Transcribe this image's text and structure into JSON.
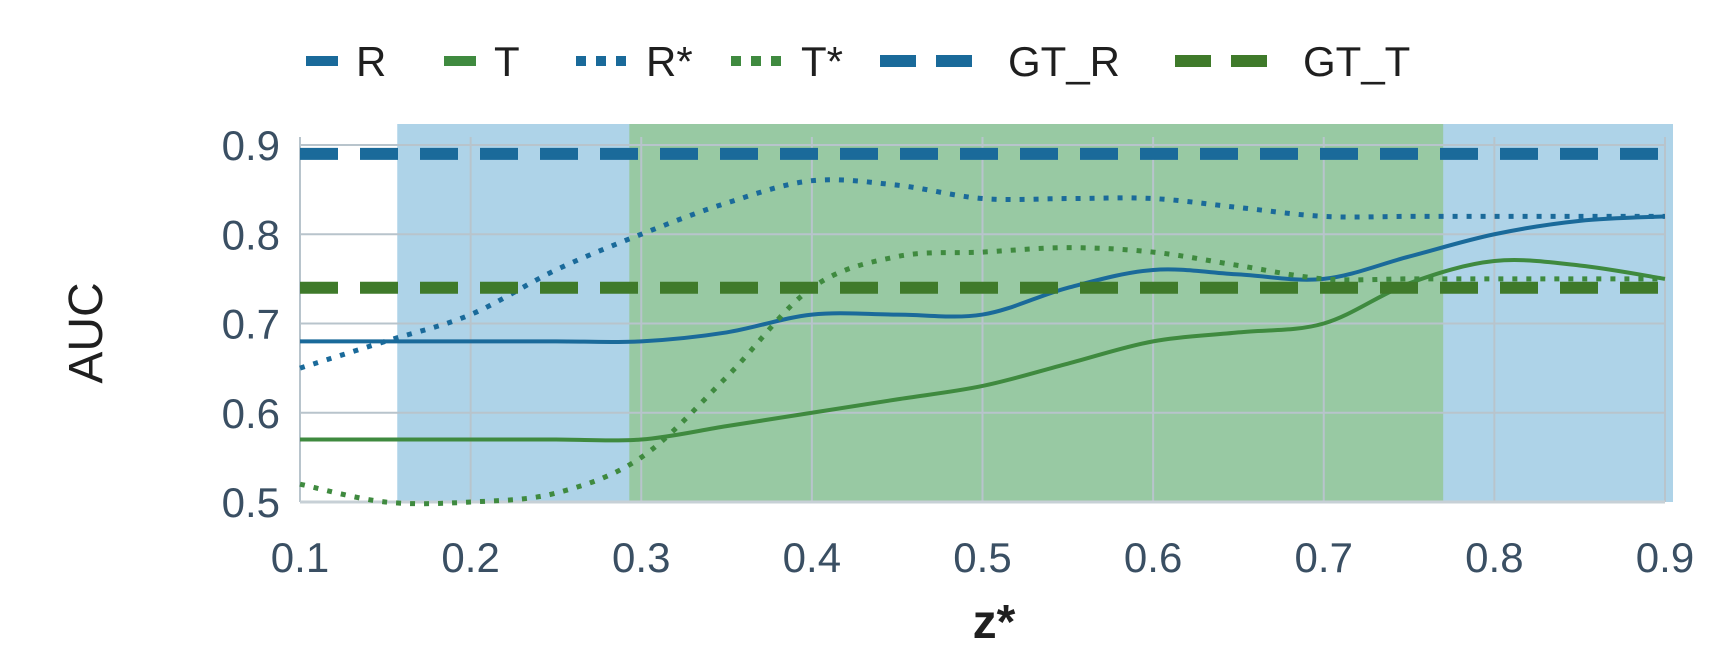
{
  "chart_data": {
    "type": "line",
    "xlabel": "z*",
    "ylabel": "AUC",
    "xlim": [
      0.1,
      0.9
    ],
    "ylim": [
      0.5,
      0.9
    ],
    "xticks": [
      "0.1",
      "0.2",
      "0.3",
      "0.4",
      "0.5",
      "0.6",
      "0.7",
      "0.8",
      "0.9"
    ],
    "yticks": [
      "0.5",
      "0.6",
      "0.7",
      "0.8",
      "0.9"
    ],
    "grid": true,
    "legend_position": "top",
    "shaded_regions": [
      {
        "name": "R-region",
        "x_start": 0.157,
        "x_end": 0.9,
        "color": "#aed3e8"
      },
      {
        "name": "T-region",
        "x_start": 0.293,
        "x_end": 0.77,
        "color": "#98c9a3"
      }
    ],
    "series": [
      {
        "name": "R",
        "style": "solid",
        "color": "#1a6a9a",
        "x": [
          0.1,
          0.15,
          0.2,
          0.25,
          0.3,
          0.35,
          0.4,
          0.45,
          0.5,
          0.55,
          0.6,
          0.65,
          0.7,
          0.75,
          0.8,
          0.85,
          0.9
        ],
        "y": [
          0.68,
          0.68,
          0.68,
          0.68,
          0.68,
          0.69,
          0.71,
          0.71,
          0.71,
          0.74,
          0.76,
          0.755,
          0.75,
          0.775,
          0.8,
          0.815,
          0.82
        ]
      },
      {
        "name": "T",
        "style": "solid",
        "color": "#3f8a3f",
        "x": [
          0.1,
          0.15,
          0.2,
          0.25,
          0.3,
          0.35,
          0.4,
          0.45,
          0.5,
          0.55,
          0.6,
          0.65,
          0.7,
          0.75,
          0.8,
          0.85,
          0.9
        ],
        "y": [
          0.57,
          0.57,
          0.57,
          0.57,
          0.57,
          0.585,
          0.6,
          0.615,
          0.63,
          0.655,
          0.68,
          0.69,
          0.7,
          0.745,
          0.77,
          0.765,
          0.75
        ]
      },
      {
        "name": "R*",
        "style": "dotted",
        "color": "#1a6a9a",
        "x": [
          0.1,
          0.15,
          0.2,
          0.25,
          0.3,
          0.35,
          0.4,
          0.45,
          0.5,
          0.55,
          0.6,
          0.65,
          0.7,
          0.75,
          0.8,
          0.85,
          0.9
        ],
        "y": [
          0.65,
          0.68,
          0.71,
          0.76,
          0.8,
          0.835,
          0.86,
          0.855,
          0.84,
          0.84,
          0.84,
          0.83,
          0.82,
          0.82,
          0.82,
          0.82,
          0.82
        ]
      },
      {
        "name": "T*",
        "style": "dotted",
        "color": "#3f8a3f",
        "x": [
          0.1,
          0.15,
          0.2,
          0.25,
          0.3,
          0.35,
          0.4,
          0.45,
          0.5,
          0.55,
          0.6,
          0.65,
          0.7,
          0.75,
          0.8,
          0.85,
          0.9
        ],
        "y": [
          0.52,
          0.5,
          0.5,
          0.51,
          0.55,
          0.64,
          0.74,
          0.775,
          0.78,
          0.785,
          0.78,
          0.765,
          0.75,
          0.75,
          0.75,
          0.75,
          0.75
        ]
      },
      {
        "name": "GT_R",
        "style": "dashed",
        "color": "#1a6a9a",
        "x": [
          0.1,
          0.9
        ],
        "y": [
          0.89,
          0.89
        ]
      },
      {
        "name": "GT_T",
        "style": "dashed",
        "color": "#3f7a2a",
        "x": [
          0.1,
          0.9
        ],
        "y": [
          0.74,
          0.74
        ]
      }
    ]
  }
}
